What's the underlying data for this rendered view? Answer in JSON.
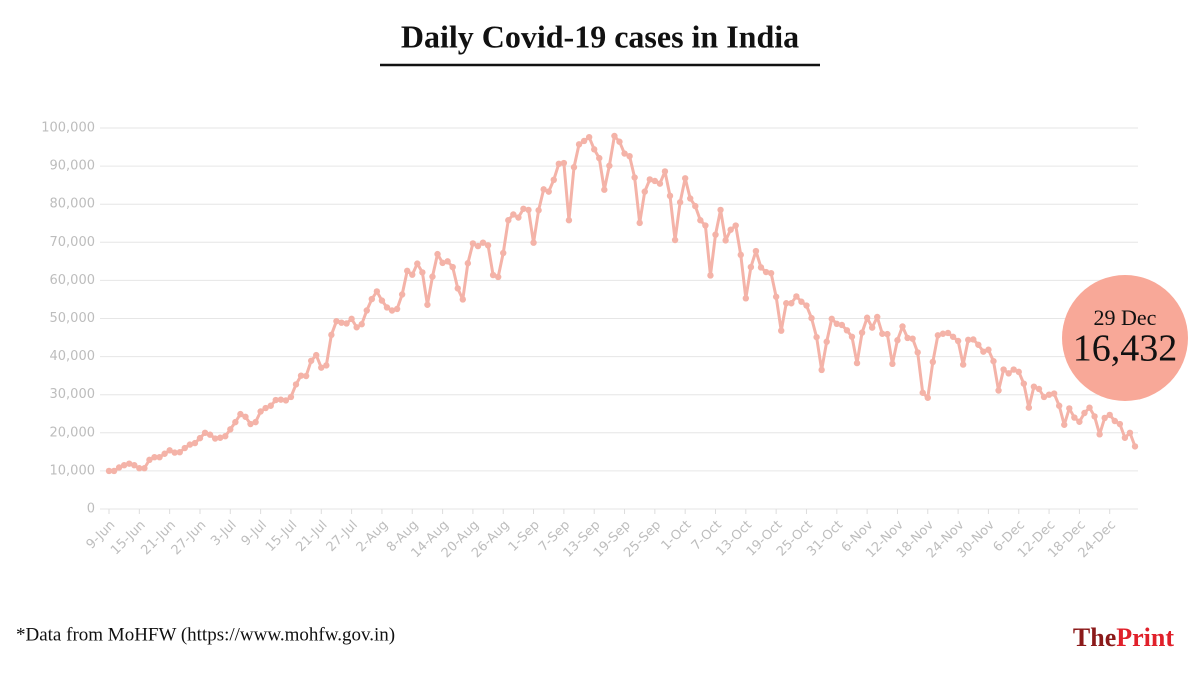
{
  "chart_data": {
    "type": "line",
    "title": "Daily Covid-19 cases in India",
    "source": "*Data from MoHFW (https://www.mohfw.gov.in)",
    "brand": {
      "first": "The",
      "second": "Print"
    },
    "annotation": "29 Dec",
    "color": "#f4b3a8",
    "annotation_color": "#f8a898",
    "grid": true,
    "ylim": [
      0,
      100000
    ],
    "yticks": [
      0,
      {
        "value": 10000,
        "label": "10,000"
      },
      {
        "value": 20000,
        "label": "20,000"
      },
      {
        "value": 30000,
        "label": "30,000"
      },
      {
        "value": 40000,
        "label": "40,000"
      },
      {
        "value": 50000,
        "label": "50,000"
      },
      {
        "value": 60000,
        "label": "60,000"
      },
      {
        "value": 70000,
        "label": "70,000"
      },
      {
        "value": 80000,
        "label": "80,000"
      },
      {
        "value": 90000,
        "label": "90,000"
      },
      {
        "value": 100000,
        "label": "100,000"
      }
    ],
    "categories": [
      "9-Jun",
      null,
      null,
      null,
      null,
      null,
      "15-Jun",
      null,
      null,
      null,
      null,
      null,
      "21-Jun",
      null,
      null,
      null,
      null,
      null,
      "27-Jun",
      null,
      null,
      null,
      null,
      null,
      "3-Jul",
      null,
      null,
      null,
      null,
      null,
      "9-Jul",
      null,
      null,
      null,
      null,
      null,
      "15-Jul",
      null,
      null,
      null,
      null,
      null,
      "21-Jul",
      null,
      null,
      null,
      null,
      null,
      "27-Jul",
      null,
      null,
      null,
      null,
      null,
      "2-Aug",
      null,
      null,
      null,
      null,
      null,
      "8-Aug",
      null,
      null,
      null,
      null,
      null,
      "14-Aug",
      null,
      null,
      null,
      null,
      null,
      "20-Aug",
      null,
      null,
      null,
      null,
      null,
      "26-Aug",
      null,
      null,
      null,
      null,
      null,
      "1-Sep",
      null,
      null,
      null,
      null,
      null,
      "7-Sep",
      null,
      null,
      null,
      null,
      null,
      "13-Sep",
      null,
      null,
      null,
      null,
      null,
      "19-Sep",
      null,
      null,
      null,
      null,
      null,
      "25-Sep",
      null,
      null,
      null,
      null,
      null,
      "1-Oct",
      null,
      null,
      null,
      null,
      null,
      "7-Oct",
      null,
      null,
      null,
      null,
      null,
      "13-Oct",
      null,
      null,
      null,
      null,
      null,
      "19-Oct",
      null,
      null,
      null,
      null,
      null,
      "25-Oct",
      null,
      null,
      null,
      null,
      null,
      "31-Oct",
      null,
      null,
      null,
      null,
      null,
      "6-Nov",
      null,
      null,
      null,
      null,
      null,
      "12-Nov",
      null,
      null,
      null,
      null,
      null,
      "18-Nov",
      null,
      null,
      null,
      null,
      null,
      "24-Nov",
      null,
      null,
      null,
      null,
      null,
      "30-Nov",
      null,
      null,
      null,
      null,
      null,
      "6-Dec",
      null,
      null,
      null,
      null,
      null,
      "12-Dec",
      null,
      null,
      null,
      null,
      null,
      "18-Dec",
      null,
      null,
      null,
      null,
      null,
      "24-Dec",
      null,
      null,
      null,
      null,
      null
    ],
    "values": [
      9987,
      9985,
      10900,
      11500,
      11900,
      11500,
      10700,
      10700,
      12900,
      13600,
      13600,
      14500,
      15400,
      14800,
      14900,
      16000,
      16900,
      17300,
      18600,
      20000,
      19500,
      18500,
      18700,
      19100,
      20900,
      22800,
      24900,
      24200,
      22300,
      22800,
      25600,
      26500,
      27100,
      28600,
      28700,
      28500,
      29400,
      32700,
      35000,
      34900,
      38900,
      40400,
      37100,
      37700,
      45700,
      49300,
      48900,
      48700,
      49900,
      47700,
      48500,
      52100,
      55100,
      57100,
      54700,
      52900,
      52100,
      52500,
      56300,
      62500,
      61500,
      64400,
      62100,
      53600,
      61000,
      66900,
      64600,
      65000,
      63500,
      57900,
      55000,
      64500,
      69700,
      69000,
      69900,
      69200,
      61400,
      60900,
      67200,
      75800,
      77300,
      76500,
      78800,
      78500,
      69900,
      78400,
      83900,
      83300,
      86400,
      90600,
      90800,
      75800,
      89700,
      95700,
      96600,
      97600,
      94400,
      92100,
      83800,
      90100,
      97900,
      96400,
      93300,
      92600,
      87000,
      75100,
      83300,
      86500,
      86100,
      85400,
      88600,
      82200,
      70600,
      80500,
      86800,
      81500,
      79500,
      75800,
      74400,
      61300,
      72000,
      78500,
      70500,
      73300,
      74400,
      66700,
      55300,
      63500,
      67700,
      63400,
      62200,
      61900,
      55700,
      46800,
      54000,
      54000,
      55800,
      54400,
      53400,
      50100,
      45100,
      36500,
      43900,
      49900,
      48600,
      48300,
      46900,
      45200,
      38300,
      46300,
      50200,
      47600,
      50400,
      46000,
      45900,
      38100,
      44300,
      47900,
      44900,
      44700,
      41100,
      30500,
      29200,
      38600,
      45600,
      46000,
      46200,
      45200,
      44100,
      37900,
      44400,
      44500,
      43100,
      41300,
      41800,
      38800,
      31100,
      36600,
      35600,
      36600,
      36000,
      32900,
      26600,
      32100,
      31500,
      29400,
      30000,
      30300,
      27100,
      22100,
      26400,
      24000,
      22900,
      25200,
      26600,
      24300,
      19600,
      23900,
      24700,
      23100,
      22300,
      18700,
      20000,
      16432
    ],
    "value_labels": [
      null,
      null,
      null,
      null,
      null,
      null,
      null,
      null,
      null,
      null,
      null,
      null,
      null,
      null,
      null,
      null,
      null,
      null,
      null,
      null,
      null,
      null,
      null,
      null,
      null,
      null,
      null,
      null,
      null,
      null,
      null,
      null,
      null,
      null,
      null,
      null,
      null,
      null,
      null,
      null,
      null,
      null,
      null,
      null,
      null,
      null,
      null,
      null,
      null,
      null,
      null,
      null,
      null,
      null,
      null,
      null,
      null,
      null,
      null,
      null,
      null,
      null,
      null,
      null,
      null,
      null,
      null,
      null,
      null,
      null,
      null,
      null,
      null,
      null,
      null,
      null,
      null,
      null,
      null,
      null,
      null,
      null,
      null,
      null,
      null,
      null,
      null,
      null,
      null,
      null,
      null,
      null,
      null,
      null,
      null,
      null,
      null,
      null,
      null,
      null,
      null,
      null,
      null,
      null,
      null,
      null,
      null,
      null,
      null,
      null,
      null,
      null,
      null,
      null,
      null,
      null,
      null,
      null,
      null,
      null,
      null,
      null,
      null,
      null,
      null,
      null,
      null,
      null,
      null,
      null,
      null,
      null,
      null,
      null,
      null,
      null,
      null,
      null,
      null,
      null,
      null,
      null,
      null,
      null,
      null,
      null,
      null,
      null,
      null,
      null,
      null,
      null,
      null,
      null,
      null,
      null,
      null,
      null,
      null,
      null,
      null,
      null,
      null,
      null,
      null,
      null,
      null,
      null,
      null,
      null,
      null,
      null,
      null,
      null,
      null,
      null,
      null,
      null,
      null,
      null,
      null,
      null,
      null,
      null,
      null,
      null,
      null,
      null,
      null,
      null,
      null,
      null,
      null,
      null,
      null,
      null,
      null,
      null,
      null,
      null,
      null,
      null,
      null,
      "16,432"
    ]
  }
}
